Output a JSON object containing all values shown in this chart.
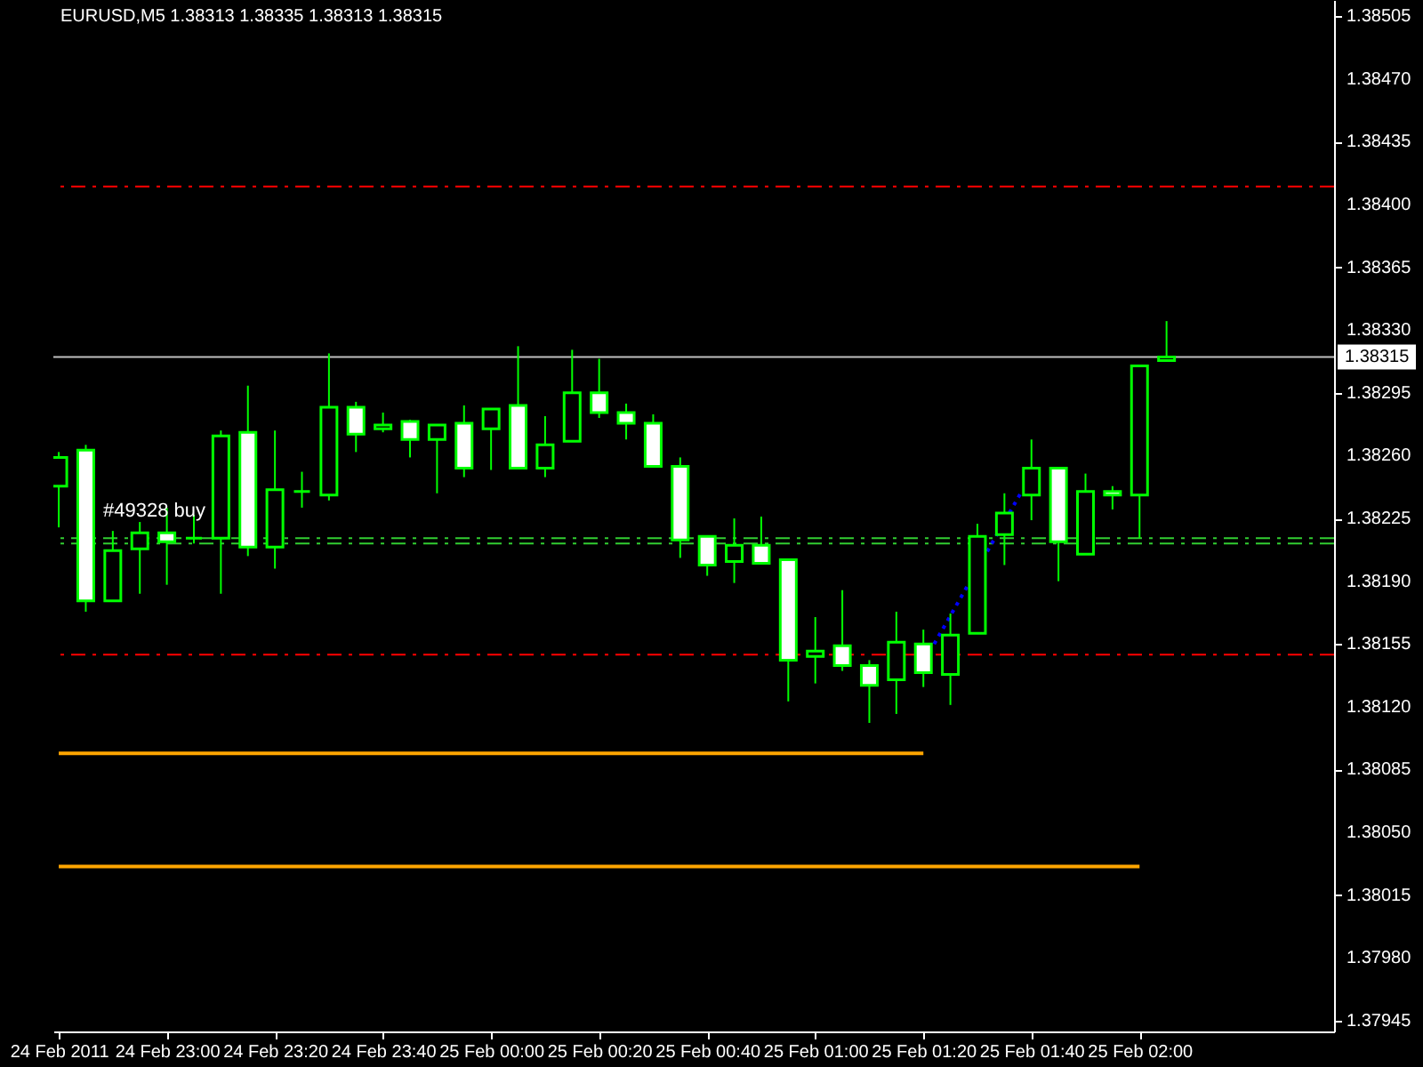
{
  "chart_data": {
    "type": "candlestick",
    "title": "EURUSD,M5  1.38313 1.38335 1.38313 1.38315",
    "ylim": [
      1.37939,
      1.38514
    ],
    "yticks": [
      1.37945,
      {
        "value": 1.3798,
        "label": "1.37980"
      },
      1.38015,
      {
        "value": 1.3805,
        "label": "1.38050"
      },
      1.38085,
      {
        "value": 1.3812,
        "label": "1.38120"
      },
      1.38155,
      {
        "value": 1.3819,
        "label": "1.38190"
      },
      1.38225,
      {
        "value": 1.3826,
        "label": "1.38260"
      },
      1.38295,
      {
        "value": 1.3833,
        "label": "1.38330"
      },
      1.38365,
      {
        "value": 1.384,
        "label": "1.38400"
      },
      1.38435,
      {
        "value": 1.3847,
        "label": "1.38470"
      },
      1.38505
    ],
    "xlim": [
      "2011-02-24T22:39",
      "2011-02-25T02:36"
    ],
    "xticks": [
      {
        "value": "2011-02-24T22:40",
        "label": "24 Feb 2011"
      },
      {
        "value": "2011-02-24T23:00",
        "label": "24 Feb 23:00"
      },
      {
        "value": "2011-02-24T23:20",
        "label": "24 Feb 23:20"
      },
      {
        "value": "2011-02-24T23:40",
        "label": "24 Feb 23:40"
      },
      {
        "value": "2011-02-25T00:00",
        "label": "25 Feb 00:00"
      },
      {
        "value": "2011-02-25T00:20",
        "label": "25 Feb 00:20"
      },
      {
        "value": "2011-02-25T00:40",
        "label": "25 Feb 00:40"
      },
      {
        "value": "2011-02-25T01:00",
        "label": "25 Feb 01:00"
      },
      {
        "value": "2011-02-25T01:20",
        "label": "25 Feb 01:20"
      },
      {
        "value": "2011-02-25T01:40",
        "label": "25 Feb 01:40"
      },
      {
        "value": "2011-02-25T02:00",
        "label": "25 Feb 02:00"
      }
    ],
    "grid": false,
    "color": "#00ff00",
    "ref_lines": [
      {
        "axis": "y",
        "value": 1.38315,
        "label": "1.38315",
        "color": "#c0c0c0",
        "line_style": "solid"
      },
      {
        "axis": "y",
        "value": 1.3841,
        "color": "#ff0000",
        "line_style": "dashed"
      },
      {
        "axis": "y",
        "value": 1.38149,
        "color": "#ff0000",
        "line_style": "dashed"
      },
      {
        "axis": "y",
        "value": 1.38214,
        "label": "#49328 buy",
        "color": "#32cd32",
        "line_style": "dashed"
      },
      {
        "axis": "y",
        "value": 1.38211,
        "color": "#32cd32",
        "line_style": "dashed"
      }
    ],
    "series": [
      {
        "type": "line",
        "color": "#ffa500",
        "line_style": "solid",
        "x": [
          "2011-02-24T22:40",
          "2011-02-25T01:20"
        ],
        "values": [
          1.38094,
          1.38094
        ]
      },
      {
        "type": "line",
        "color": "#ffa500",
        "line_style": "solid",
        "x": [
          "2011-02-24T22:40",
          "2011-02-25T02:00"
        ],
        "values": [
          1.38031,
          1.38031
        ]
      },
      {
        "type": "line",
        "color": "#0000ff",
        "line_style": "dotted",
        "x": [
          "2011-02-25T01:22",
          "2011-02-25T01:38"
        ],
        "values": [
          1.38155,
          1.38239
        ]
      }
    ],
    "x": [
      "2011-02-24T22:40",
      "2011-02-24T22:45",
      "2011-02-24T22:50",
      "2011-02-24T22:55",
      "2011-02-24T23:00",
      "2011-02-24T23:05",
      "2011-02-24T23:10",
      "2011-02-24T23:15",
      "2011-02-24T23:20",
      "2011-02-24T23:25",
      "2011-02-24T23:30",
      "2011-02-24T23:35",
      "2011-02-24T23:40",
      "2011-02-24T23:45",
      "2011-02-24T23:50",
      "2011-02-24T23:55",
      "2011-02-25T00:00",
      "2011-02-25T00:05",
      "2011-02-25T00:10",
      "2011-02-25T00:15",
      "2011-02-25T00:20",
      "2011-02-25T00:25",
      "2011-02-25T00:30",
      "2011-02-25T00:35",
      "2011-02-25T00:40",
      "2011-02-25T00:45",
      "2011-02-25T00:50",
      "2011-02-25T00:55",
      "2011-02-25T01:00",
      "2011-02-25T01:05",
      "2011-02-25T01:10",
      "2011-02-25T01:15",
      "2011-02-25T01:20",
      "2011-02-25T01:25",
      "2011-02-25T01:30",
      "2011-02-25T01:35",
      "2011-02-25T01:40",
      "2011-02-25T01:45",
      "2011-02-25T01:50",
      "2011-02-25T01:55",
      "2011-02-25T02:00",
      "2011-02-25T02:05"
    ],
    "colors": [
      "#000000",
      "#ffffff",
      "#000000",
      "#000000",
      "#ffffff",
      "#00ff00",
      "#000000",
      "#ffffff",
      "#000000",
      "#00ff00",
      "#000000",
      "#ffffff",
      "#000000",
      "#ffffff",
      "#000000",
      "#ffffff",
      "#000000",
      "#ffffff",
      "#000000",
      "#000000",
      "#ffffff",
      "#ffffff",
      "#ffffff",
      "#ffffff",
      "#ffffff",
      "#000000",
      "#ffffff",
      "#ffffff",
      "#000000",
      "#ffffff",
      "#ffffff",
      "#000000",
      "#ffffff",
      "#000000",
      "#000000",
      "#000000",
      "#000000",
      "#ffffff",
      "#000000",
      "#ffffff",
      "#000000",
      "#000000"
    ],
    "ohlc": [
      [
        1.38243,
        1.38262,
        1.3822,
        1.38259
      ],
      [
        1.38263,
        1.38266,
        1.38173,
        1.38179
      ],
      [
        1.38179,
        1.38218,
        1.38179,
        1.38207
      ],
      [
        1.38208,
        1.38223,
        1.38183,
        1.38217
      ],
      [
        1.38217,
        1.38231,
        1.38188,
        1.38212
      ],
      [
        1.38214,
        1.38227,
        1.38211,
        1.38214
      ],
      [
        1.38214,
        1.38274,
        1.38183,
        1.38271
      ],
      [
        1.38273,
        1.38299,
        1.38204,
        1.38209
      ],
      [
        1.38209,
        1.38274,
        1.38197,
        1.38241
      ],
      [
        1.3824,
        1.38251,
        1.38231,
        1.3824
      ],
      [
        1.38238,
        1.38317,
        1.38235,
        1.38287
      ],
      [
        1.38287,
        1.3829,
        1.38262,
        1.38272
      ],
      [
        1.38275,
        1.38284,
        1.38273,
        1.38277
      ],
      [
        1.38279,
        1.3828,
        1.38259,
        1.38269
      ],
      [
        1.38269,
        1.38277,
        1.38239,
        1.38277
      ],
      [
        1.38278,
        1.38288,
        1.38248,
        1.38253
      ],
      [
        1.38275,
        1.38286,
        1.38252,
        1.38286
      ],
      [
        1.38288,
        1.38321,
        1.38253,
        1.38253
      ],
      [
        1.38253,
        1.38282,
        1.38248,
        1.38266
      ],
      [
        1.38268,
        1.38319,
        1.38268,
        1.38295
      ],
      [
        1.38295,
        1.38314,
        1.38281,
        1.38284
      ],
      [
        1.38284,
        1.38289,
        1.38269,
        1.38278
      ],
      [
        1.38278,
        1.38283,
        1.38254,
        1.38254
      ],
      [
        1.38254,
        1.38259,
        1.38203,
        1.38213
      ],
      [
        1.38215,
        1.38215,
        1.38193,
        1.38199
      ],
      [
        1.38201,
        1.38225,
        1.38189,
        1.3821
      ],
      [
        1.3821,
        1.38226,
        1.382,
        1.382
      ],
      [
        1.38202,
        1.38202,
        1.38123,
        1.38146
      ],
      [
        1.38148,
        1.3817,
        1.38133,
        1.38151
      ],
      [
        1.38154,
        1.38185,
        1.3814,
        1.38143
      ],
      [
        1.38143,
        1.38146,
        1.38111,
        1.38132
      ],
      [
        1.38135,
        1.38173,
        1.38116,
        1.38156
      ],
      [
        1.38155,
        1.38163,
        1.38131,
        1.38139
      ],
      [
        1.38138,
        1.38172,
        1.38121,
        1.3816
      ],
      [
        1.38161,
        1.38222,
        1.38161,
        1.38215
      ],
      [
        1.38216,
        1.38239,
        1.38199,
        1.38228
      ],
      [
        1.38238,
        1.38269,
        1.38224,
        1.38253
      ],
      [
        1.38253,
        1.38253,
        1.3819,
        1.38212
      ],
      [
        1.38205,
        1.3825,
        1.38205,
        1.3824
      ],
      [
        1.3824,
        1.38243,
        1.3823,
        1.38238
      ],
      [
        1.38238,
        1.3831,
        1.38214,
        1.3831
      ],
      [
        1.38313,
        1.38335,
        1.38313,
        1.38315
      ]
    ]
  }
}
